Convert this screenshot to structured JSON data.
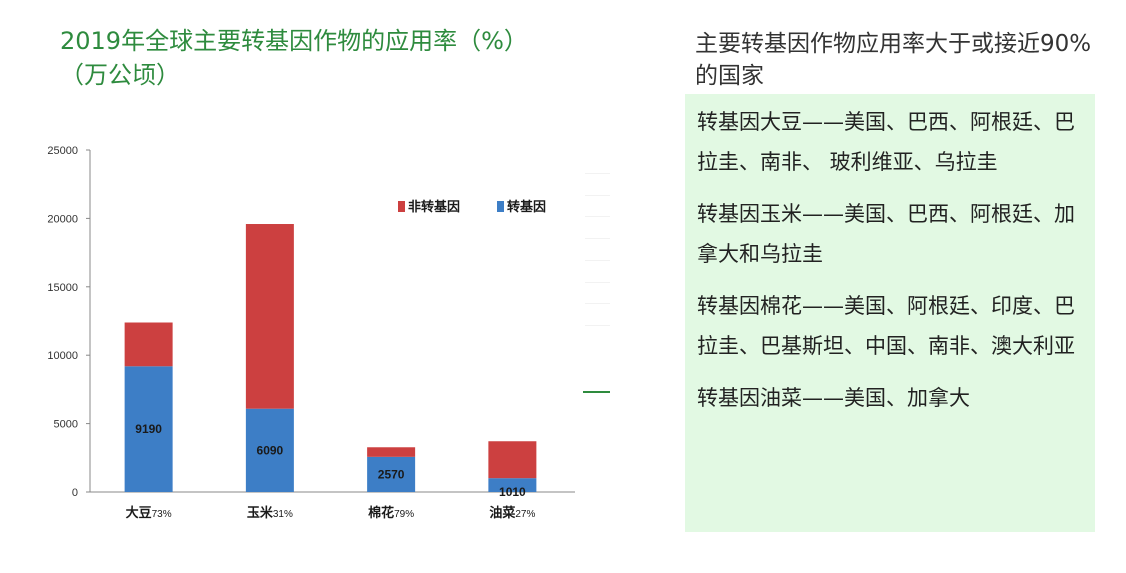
{
  "header": {
    "title": "2019年全球主要转基因作物的应用率（%）",
    "subtitle": "（万公顷）"
  },
  "right_panel": {
    "title": "主要转基因作物应用率大于或接近90%的国家",
    "entries": [
      "转基因大豆——美国、巴西、阿根廷、巴拉圭、南非、 玻利维亚、乌拉圭",
      "转基因玉米——美国、巴西、阿根廷、加拿大和乌拉圭",
      "转基因棉花——美国、阿根廷、印度、巴拉圭、巴基斯坦、中国、南非、澳大利亚",
      "转基因油菜——美国、加拿大"
    ]
  },
  "colors": {
    "title": "#2e8b3e",
    "gm": "#3d7ec6",
    "non_gm": "#cc4040",
    "panel_bg": "#e2f9e3"
  },
  "chart_data": {
    "type": "bar",
    "stacked": true,
    "categories": [
      "大豆73%",
      "玉米31%",
      "棉花79%",
      "油菜27%"
    ],
    "category_names": [
      "大豆",
      "玉米",
      "棉花",
      "油菜"
    ],
    "category_rates": [
      "73%",
      "31%",
      "79%",
      "27%"
    ],
    "series": [
      {
        "name": "转基因",
        "values": [
          9190,
          6090,
          2570,
          1010
        ],
        "color": "#3d7ec6",
        "data_labels": [
          "9190",
          "6090",
          "2570",
          "1010"
        ]
      },
      {
        "name": "非转基因",
        "values": [
          3200,
          13500,
          700,
          2700
        ],
        "color": "#cc4040"
      }
    ],
    "ylim": [
      0,
      25000
    ],
    "yticks": [
      0,
      5000,
      10000,
      15000,
      20000,
      25000
    ],
    "ytick_labels": [
      "0",
      "5000",
      "10000",
      "15000",
      "20000",
      "25000"
    ],
    "legend_position": "top-right",
    "grid": false
  }
}
